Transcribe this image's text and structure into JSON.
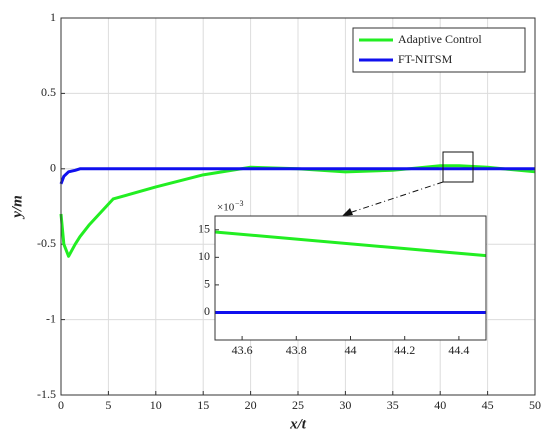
{
  "chart_data": [
    {
      "type": "line",
      "xlabel": "x/t",
      "ylabel": "y/m",
      "x": [
        0,
        0.3,
        0.8,
        1.5,
        2,
        3,
        5.5,
        10,
        15,
        20,
        25,
        30,
        35,
        40,
        42,
        45,
        50
      ],
      "series": [
        {
          "name": "Adaptive Control",
          "color": "#22ee22",
          "values": [
            -0.3,
            -0.5,
            -0.58,
            -0.5,
            -0.45,
            -0.37,
            -0.2,
            -0.12,
            -0.04,
            0.01,
            0,
            -0.02,
            -0.01,
            0.02,
            0.02,
            0.01,
            -0.02
          ]
        },
        {
          "name": "FT-NITSM",
          "color": "#1010ee",
          "values": [
            -0.1,
            -0.05,
            -0.02,
            -0.01,
            0,
            0,
            0,
            0,
            0,
            0,
            0,
            0,
            0,
            0,
            0,
            0,
            0
          ]
        }
      ],
      "xlim": [
        0,
        50
      ],
      "xticks": [
        0,
        5,
        10,
        15,
        20,
        25,
        30,
        35,
        40,
        45,
        50
      ],
      "ylim": [
        -1.5,
        1
      ],
      "yticks": [
        -1.5,
        -1,
        -0.5,
        0,
        0.5,
        1
      ],
      "grid": true,
      "legend": "upper right"
    },
    {
      "type": "line",
      "x": [
        43.5,
        44.5
      ],
      "series": [
        {
          "color": "#22ee22",
          "values": [
            14.6,
            10.3
          ]
        },
        {
          "color": "#1010ee",
          "values": [
            0,
            0
          ]
        }
      ],
      "xlim": [
        43.5,
        44.5
      ],
      "xticks": [
        43.6,
        43.8,
        44,
        44.2,
        44.4
      ],
      "ylim": [
        -5,
        17.5
      ],
      "yticks": [
        0,
        5,
        10,
        15
      ],
      "y_multiplier": {
        "base": "×10",
        "exponent": "−3"
      },
      "grid": false
    }
  ]
}
